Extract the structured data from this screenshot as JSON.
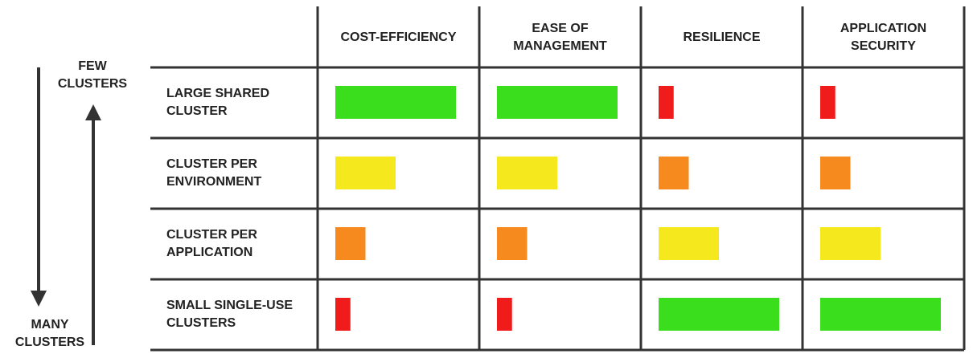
{
  "axis": {
    "top_label": [
      "FEW",
      "CLUSTERS"
    ],
    "bottom_label": [
      "MANY",
      "CLUSTERS"
    ]
  },
  "table": {
    "columns": [
      [
        "COST-EFFICIENCY"
      ],
      [
        "EASE OF",
        "MANAGEMENT"
      ],
      [
        "RESILIENCE"
      ],
      [
        "APPLICATION",
        "SECURITY"
      ]
    ],
    "rows": [
      {
        "label": [
          "LARGE SHARED",
          "CLUSTER"
        ],
        "scores": [
          8,
          8,
          1,
          1
        ]
      },
      {
        "label": [
          "CLUSTER PER",
          "ENVIRONMENT"
        ],
        "scores": [
          4,
          4,
          2,
          2
        ]
      },
      {
        "label": [
          "CLUSTER PER",
          "APPLICATION"
        ],
        "scores": [
          2,
          2,
          4,
          4
        ]
      },
      {
        "label": [
          "SMALL SINGLE-USE",
          "CLUSTERS"
        ],
        "scores": [
          1,
          1,
          8,
          8
        ]
      }
    ],
    "score_colors": {
      "1": "#f01c1c",
      "2": "#f78a1e",
      "4": "#f5e81c",
      "8": "#3ade1d"
    }
  }
}
